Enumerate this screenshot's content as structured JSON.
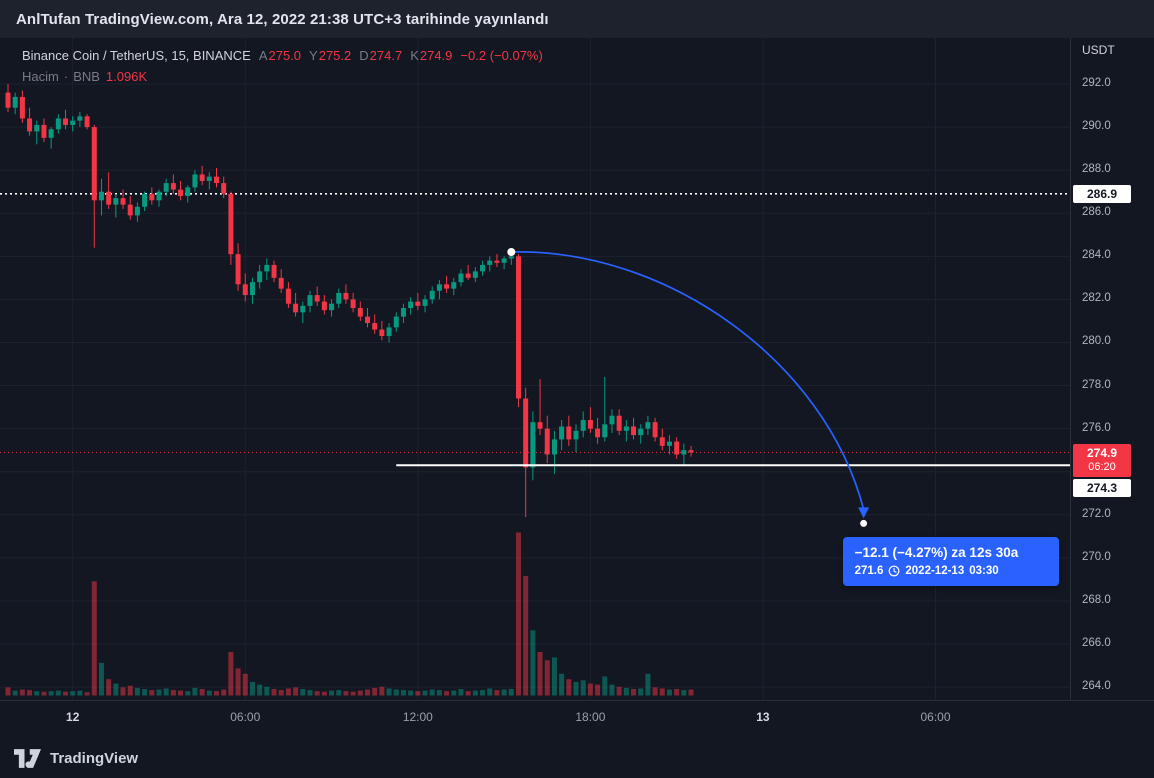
{
  "banner": {
    "text": "AnlTufan TradingView.com, Ara 12, 2022 21:38 UTC+3 tarihinde yayınlandı"
  },
  "legend": {
    "symbol": "Binance Coin / TetherUS, 15, BINANCE",
    "ohlc": [
      {
        "k": "A",
        "v": "275.0"
      },
      {
        "k": "Y",
        "v": "275.2"
      },
      {
        "k": "D",
        "v": "274.7"
      },
      {
        "k": "K",
        "v": "274.9"
      }
    ],
    "change": "−0.2 (−0.07%)",
    "volume_label": "Hacim",
    "volume_sep": "·",
    "volume_symbol": "BNB",
    "volume_value": "1.096K"
  },
  "price_axis": {
    "currency": "USDT",
    "tags": {
      "level": "286.9",
      "last": "274.9",
      "countdown": "06:20",
      "ray": "274.3"
    }
  },
  "projection": {
    "headline": "−12.1 (−4.27%) za 12s 30a",
    "price": "271.6",
    "date": "2022-12-13",
    "time": "03:30"
  },
  "watermark": {
    "brand": "TradingView"
  },
  "colors": {
    "up": "#089981",
    "down": "#f23645",
    "accent": "#2962ff",
    "grid": "#1e222d",
    "axis_text": "#b2b5be",
    "last_price": "#f23645",
    "level_line": "#ffffff"
  },
  "chart_data": {
    "type": "candlestick",
    "symbol": "Binance Coin / TetherUS",
    "exchange": "BINANCE",
    "interval_minutes": 15,
    "quote_currency": "USDT",
    "first_candle_time": "2022-12-11 21:45",
    "legend_note": "volume pane overlaid at bottom",
    "y_axis": {
      "min": 263.5,
      "max": 294.3,
      "tick_step": 2,
      "ticks": [
        {
          "label": "292.0",
          "price": 292.0
        },
        {
          "label": "290.0",
          "price": 290.0
        },
        {
          "label": "288.0",
          "price": 288.0
        },
        {
          "label": "286.0",
          "price": 286.0
        },
        {
          "label": "284.0",
          "price": 284.0
        },
        {
          "label": "282.0",
          "price": 282.0
        },
        {
          "label": "280.0",
          "price": 280.0
        },
        {
          "label": "278.0",
          "price": 278.0
        },
        {
          "label": "276.0",
          "price": 276.0
        },
        {
          "label": "",
          "price": 274.0
        },
        {
          "label": "272.0",
          "price": 272.0
        },
        {
          "label": "270.0",
          "price": 270.0
        },
        {
          "label": "268.0",
          "price": 268.0
        },
        {
          "label": "266.0",
          "price": 266.0
        },
        {
          "label": "264.0",
          "price": 264.0
        }
      ]
    },
    "x_ticks": [
      {
        "label": "12",
        "index": 9,
        "major": true
      },
      {
        "label": "06:00",
        "index": 33,
        "major": false
      },
      {
        "label": "12:00",
        "index": 57,
        "major": false
      },
      {
        "label": "18:00",
        "index": 81,
        "major": false
      },
      {
        "label": "13",
        "index": 105,
        "major": true
      },
      {
        "label": "06:00",
        "index": 129,
        "major": false
      }
    ],
    "overlays": {
      "dotted_level_price": 286.9,
      "last_price": 274.9,
      "bar_countdown": "06:20",
      "horizontal_ray": {
        "price": 274.3,
        "start_index": 54
      },
      "projection_arrow": {
        "from": {
          "index": 70,
          "price": 284.2
        },
        "to": {
          "index": 119,
          "price": 271.6
        },
        "change": -12.1,
        "change_pct": -4.27,
        "duration_label": "12s 30a",
        "target_datetime": "2022-12-13 03:30"
      }
    },
    "ohlcv": [
      [
        291.6,
        292.0,
        290.7,
        290.9,
        1.5
      ],
      [
        290.9,
        291.6,
        290.6,
        291.4,
        0.9
      ],
      [
        291.4,
        291.7,
        290.2,
        290.4,
        1.1
      ],
      [
        290.4,
        290.9,
        289.6,
        289.8,
        1.0
      ],
      [
        289.8,
        290.3,
        289.2,
        290.1,
        0.8
      ],
      [
        290.1,
        290.4,
        289.3,
        289.5,
        0.7
      ],
      [
        289.5,
        290.0,
        289.0,
        289.9,
        0.8
      ],
      [
        289.9,
        290.6,
        289.7,
        290.4,
        0.9
      ],
      [
        290.4,
        290.8,
        289.9,
        290.1,
        0.7
      ],
      [
        290.1,
        290.5,
        289.8,
        290.3,
        0.8
      ],
      [
        290.3,
        290.7,
        290.0,
        290.5,
        0.9
      ],
      [
        290.5,
        290.6,
        289.9,
        290.0,
        0.6
      ],
      [
        290.0,
        290.1,
        284.4,
        286.6,
        21
      ],
      [
        286.6,
        287.6,
        285.9,
        287.0,
        6
      ],
      [
        287.0,
        287.9,
        286.2,
        286.4,
        3
      ],
      [
        286.4,
        286.9,
        285.8,
        286.7,
        2.2
      ],
      [
        286.7,
        287.1,
        286.2,
        286.4,
        1.5
      ],
      [
        286.4,
        286.8,
        285.7,
        285.9,
        1.8
      ],
      [
        285.9,
        286.5,
        285.6,
        286.3,
        1.4
      ],
      [
        286.3,
        287.0,
        286.1,
        286.9,
        1.2
      ],
      [
        286.9,
        287.2,
        286.4,
        286.6,
        1.0
      ],
      [
        286.6,
        287.1,
        286.3,
        287.0,
        1.1
      ],
      [
        287.0,
        287.6,
        286.8,
        287.4,
        1.3
      ],
      [
        287.4,
        287.8,
        286.9,
        287.1,
        1.0
      ],
      [
        287.1,
        287.5,
        286.6,
        286.8,
        0.9
      ],
      [
        286.8,
        287.3,
        286.5,
        287.2,
        0.8
      ],
      [
        287.2,
        288.0,
        287.0,
        287.8,
        1.4
      ],
      [
        287.8,
        288.2,
        287.3,
        287.5,
        1.2
      ],
      [
        287.5,
        287.9,
        287.1,
        287.7,
        0.9
      ],
      [
        287.7,
        288.1,
        287.2,
        287.4,
        0.8
      ],
      [
        287.4,
        287.7,
        286.7,
        286.9,
        1.1
      ],
      [
        286.9,
        287.0,
        283.6,
        284.1,
        8
      ],
      [
        284.1,
        284.6,
        282.4,
        282.7,
        5
      ],
      [
        282.7,
        283.2,
        281.9,
        282.2,
        4
      ],
      [
        282.2,
        283.0,
        281.8,
        282.8,
        2.5
      ],
      [
        282.8,
        283.6,
        282.5,
        283.3,
        2.0
      ],
      [
        283.3,
        283.9,
        282.9,
        283.6,
        1.6
      ],
      [
        283.6,
        283.8,
        282.8,
        283.0,
        1.2
      ],
      [
        283.0,
        283.4,
        282.3,
        282.5,
        1.0
      ],
      [
        282.5,
        282.8,
        281.6,
        281.8,
        1.3
      ],
      [
        281.8,
        282.3,
        281.2,
        281.4,
        1.5
      ],
      [
        281.4,
        281.9,
        280.9,
        281.7,
        1.2
      ],
      [
        281.7,
        282.4,
        281.4,
        282.2,
        1.0
      ],
      [
        282.2,
        282.6,
        281.7,
        281.9,
        0.8
      ],
      [
        281.9,
        282.2,
        281.3,
        281.5,
        0.7
      ],
      [
        281.5,
        282.0,
        281.2,
        281.8,
        0.9
      ],
      [
        281.8,
        282.5,
        281.6,
        282.3,
        1.0
      ],
      [
        282.3,
        282.7,
        281.8,
        282.0,
        0.8
      ],
      [
        282.0,
        282.3,
        281.4,
        281.6,
        0.7
      ],
      [
        281.6,
        281.9,
        281.0,
        281.2,
        0.9
      ],
      [
        281.2,
        281.6,
        280.7,
        280.9,
        1.1
      ],
      [
        280.9,
        281.3,
        280.4,
        280.6,
        1.4
      ],
      [
        280.6,
        281.0,
        280.1,
        280.3,
        1.6
      ],
      [
        280.3,
        280.9,
        280.0,
        280.7,
        1.3
      ],
      [
        280.7,
        281.4,
        280.5,
        281.2,
        1.1
      ],
      [
        281.2,
        281.8,
        280.9,
        281.6,
        1.0
      ],
      [
        281.6,
        282.1,
        281.3,
        281.9,
        0.9
      ],
      [
        281.9,
        282.3,
        281.5,
        281.7,
        0.8
      ],
      [
        281.7,
        282.2,
        281.4,
        282.0,
        0.9
      ],
      [
        282.0,
        282.6,
        281.8,
        282.4,
        1.1
      ],
      [
        282.4,
        282.9,
        282.0,
        282.7,
        1.0
      ],
      [
        282.7,
        283.1,
        282.3,
        282.5,
        0.8
      ],
      [
        282.5,
        283.0,
        282.2,
        282.8,
        0.9
      ],
      [
        282.8,
        283.4,
        282.6,
        283.2,
        1.2
      ],
      [
        283.2,
        283.6,
        282.9,
        283.0,
        0.8
      ],
      [
        283.0,
        283.5,
        282.8,
        283.3,
        0.9
      ],
      [
        283.3,
        283.8,
        283.1,
        283.6,
        1.0
      ],
      [
        283.6,
        284.0,
        283.3,
        283.8,
        1.3
      ],
      [
        283.8,
        284.1,
        283.5,
        283.7,
        1.0
      ],
      [
        283.7,
        284.0,
        283.4,
        283.9,
        1.1
      ],
      [
        283.9,
        284.2,
        283.6,
        284.0,
        1.2
      ],
      [
        284.0,
        284.1,
        277.0,
        277.4,
        30
      ],
      [
        277.4,
        277.9,
        271.9,
        274.2,
        22
      ],
      [
        274.2,
        276.8,
        273.6,
        276.3,
        12
      ],
      [
        276.3,
        278.3,
        275.7,
        276.0,
        8
      ],
      [
        276.0,
        276.6,
        274.4,
        274.8,
        6.5
      ],
      [
        274.8,
        275.9,
        273.9,
        275.5,
        7
      ],
      [
        275.5,
        276.4,
        275.0,
        276.1,
        4
      ],
      [
        276.1,
        276.6,
        275.2,
        275.5,
        3
      ],
      [
        275.5,
        276.2,
        274.9,
        275.9,
        2.5
      ],
      [
        275.9,
        276.8,
        275.6,
        276.4,
        2.8
      ],
      [
        276.4,
        277.0,
        275.8,
        276.0,
        2.2
      ],
      [
        276.0,
        276.5,
        275.3,
        275.6,
        2.0
      ],
      [
        275.6,
        278.4,
        275.4,
        276.2,
        3.5
      ],
      [
        276.2,
        276.9,
        275.8,
        276.6,
        2.0
      ],
      [
        276.6,
        276.9,
        275.7,
        275.9,
        1.6
      ],
      [
        275.9,
        276.4,
        275.4,
        276.1,
        1.4
      ],
      [
        276.1,
        276.5,
        275.5,
        275.7,
        1.2
      ],
      [
        275.7,
        276.2,
        275.3,
        276.0,
        1.3
      ],
      [
        276.0,
        276.6,
        275.7,
        276.3,
        4.0
      ],
      [
        276.3,
        276.5,
        275.4,
        275.6,
        1.5
      ],
      [
        275.6,
        276.0,
        275.0,
        275.2,
        1.3
      ],
      [
        275.2,
        275.7,
        274.8,
        275.4,
        1.1
      ],
      [
        275.4,
        275.6,
        274.6,
        274.8,
        1.2
      ],
      [
        274.8,
        275.3,
        274.3,
        275.0,
        1.0
      ],
      [
        275.0,
        275.2,
        274.7,
        274.9,
        1.096
      ]
    ]
  }
}
